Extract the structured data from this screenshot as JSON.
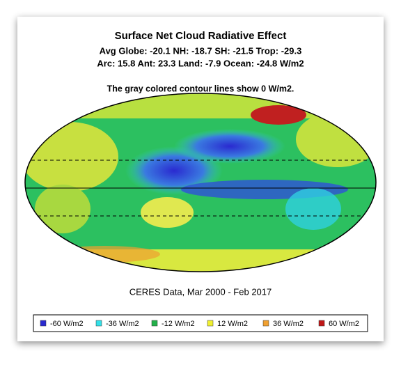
{
  "header": {
    "title": "Surface Net Cloud Radiative Effect",
    "stats": [
      "Avg Globe: -20.1  NH: -18.7  SH: -21.5  Trop: -29.3",
      "Arc: 15.8  Ant: 23.3  Land: -7.9 Ocean: -24.8 W/m2"
    ],
    "note": "The gray colored contour lines show 0 W/m2."
  },
  "caption": "CERES Data, Mar 2000 - Feb 2017",
  "legend": [
    {
      "label": "-60 W/m2",
      "color": "#2a2ad0"
    },
    {
      "label": "-36 W/m2",
      "color": "#33e0e8"
    },
    {
      "label": "-12 W/m2",
      "color": "#22b04a"
    },
    {
      "label": "12 W/m2",
      "color": "#f0f030"
    },
    {
      "label": "36 W/m2",
      "color": "#f0a030"
    },
    {
      "label": "60 W/m2",
      "color": "#c01818"
    }
  ]
}
